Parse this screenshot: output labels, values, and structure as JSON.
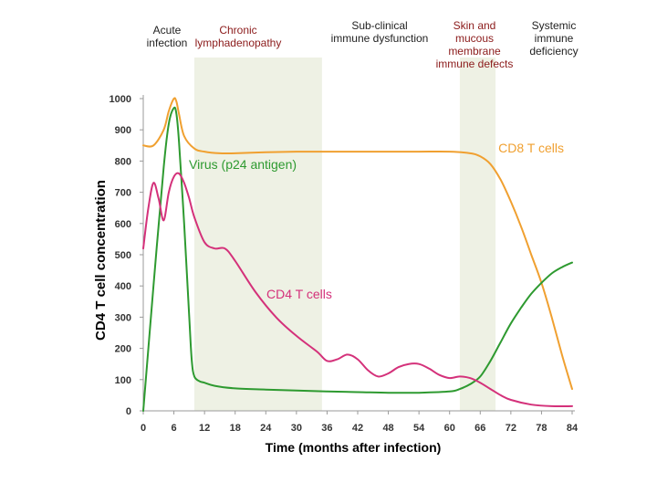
{
  "chart_data": {
    "type": "line",
    "xlabel": "Time (months after infection)",
    "ylabel": "CD4 T cell concentration",
    "xlim": [
      0,
      84
    ],
    "ylim": [
      0,
      1000
    ],
    "x_ticks": [
      0,
      6,
      12,
      18,
      24,
      30,
      36,
      42,
      48,
      54,
      60,
      66,
      72,
      78,
      84
    ],
    "y_ticks": [
      0,
      100,
      200,
      300,
      400,
      500,
      600,
      700,
      800,
      900,
      1000
    ],
    "phases": [
      {
        "label_lines": [
          "Acute",
          "infection"
        ],
        "color": "#222222"
      },
      {
        "label_lines": [
          "Chronic",
          "lymphadenopathy"
        ],
        "color": "#8b1a1a",
        "range": [
          10,
          35
        ]
      },
      {
        "label_lines": [
          "Sub-clinical",
          "immune dysfunction"
        ],
        "color": "#222222"
      },
      {
        "label_lines": [
          "Skin and",
          "mucous",
          "membrane",
          "immune defects"
        ],
        "color": "#8b1a1a",
        "range": [
          62,
          69
        ]
      },
      {
        "label_lines": [
          "Systemic",
          "immune",
          "deficiency"
        ],
        "color": "#222222"
      }
    ],
    "band_color": "#eef1e4",
    "series": [
      {
        "name": "CD8 T cells",
        "color": "#f0a030",
        "x": [
          0,
          2,
          4,
          5,
          6,
          6.5,
          7,
          8,
          10,
          12,
          15,
          18,
          24,
          30,
          36,
          42,
          48,
          54,
          60,
          64,
          66,
          68,
          70,
          72,
          74,
          76,
          78,
          80,
          82,
          84
        ],
        "y": [
          850,
          850,
          900,
          960,
          1000,
          990,
          950,
          880,
          840,
          830,
          825,
          825,
          828,
          830,
          830,
          830,
          830,
          830,
          830,
          825,
          815,
          790,
          740,
          670,
          590,
          500,
          410,
          300,
          180,
          70
        ]
      },
      {
        "name": "Virus (p24 antigen)",
        "color": "#2e9a30",
        "x": [
          0,
          2,
          4,
          5,
          6,
          6.5,
          7,
          8,
          9,
          9.5,
          10,
          11,
          12,
          14,
          18,
          24,
          30,
          36,
          42,
          48,
          54,
          60,
          62,
          64,
          66,
          68,
          70,
          72,
          74,
          76,
          78,
          80,
          82,
          84
        ],
        "y": [
          0,
          400,
          780,
          920,
          970,
          950,
          860,
          600,
          300,
          160,
          110,
          95,
          90,
          80,
          72,
          68,
          65,
          62,
          60,
          58,
          58,
          62,
          70,
          85,
          110,
          160,
          220,
          280,
          330,
          375,
          410,
          440,
          460,
          475
        ]
      },
      {
        "name": "CD4 T cells",
        "color": "#d4317a",
        "x": [
          0,
          1,
          2,
          3,
          4,
          5,
          6,
          7,
          8,
          9,
          10,
          12,
          14,
          16,
          18,
          22,
          26,
          30,
          34,
          36,
          38,
          40,
          42,
          44,
          46,
          48,
          50,
          52,
          54,
          56,
          58,
          60,
          62,
          64,
          66,
          68,
          70,
          72,
          76,
          80,
          84
        ],
        "y": [
          520,
          650,
          730,
          680,
          610,
          700,
          750,
          760,
          730,
          680,
          620,
          540,
          520,
          520,
          480,
          380,
          300,
          240,
          190,
          160,
          165,
          180,
          165,
          130,
          110,
          120,
          140,
          150,
          150,
          135,
          115,
          105,
          110,
          105,
          90,
          70,
          50,
          35,
          20,
          15,
          15
        ]
      }
    ]
  }
}
